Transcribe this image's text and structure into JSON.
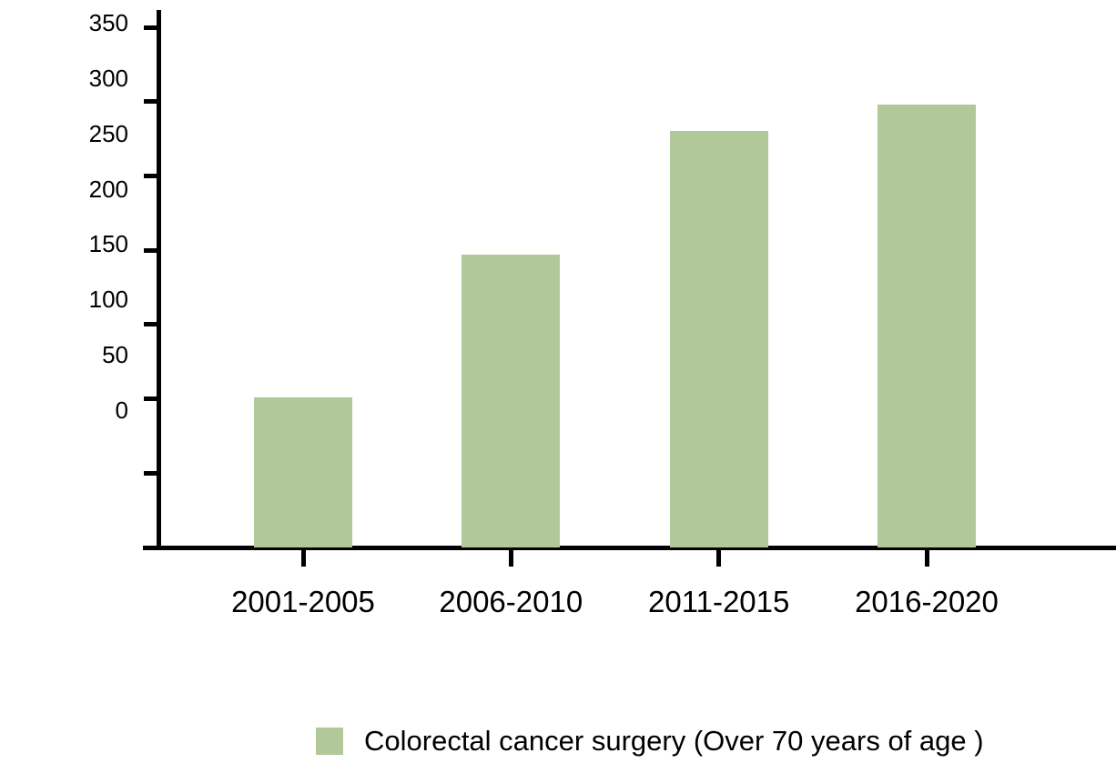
{
  "chart_data": {
    "type": "bar",
    "title": "",
    "categories": [
      "2001-2005",
      "2006-2010",
      "2011-2015",
      "2016-2020"
    ],
    "series": [
      {
        "name": "Colorectal cancer surgery (Over 70 years of age )",
        "values": [
          101,
          197,
          280,
          298
        ]
      }
    ],
    "xlabel": "",
    "ylabel": "",
    "ylim": [
      0,
      350
    ],
    "y_tick_step": 50,
    "y_tick_labels": [
      "350",
      "300",
      "250",
      "200",
      "150",
      "100",
      "50",
      "0"
    ],
    "grid": false,
    "legend_position": "bottom-center",
    "colors": {
      "bar": "#b1c898",
      "axis": "#000000",
      "text": "#000000",
      "background": "#ffffff"
    }
  },
  "legend": {
    "label": "Colorectal cancer surgery (Over 70 years of age )"
  }
}
